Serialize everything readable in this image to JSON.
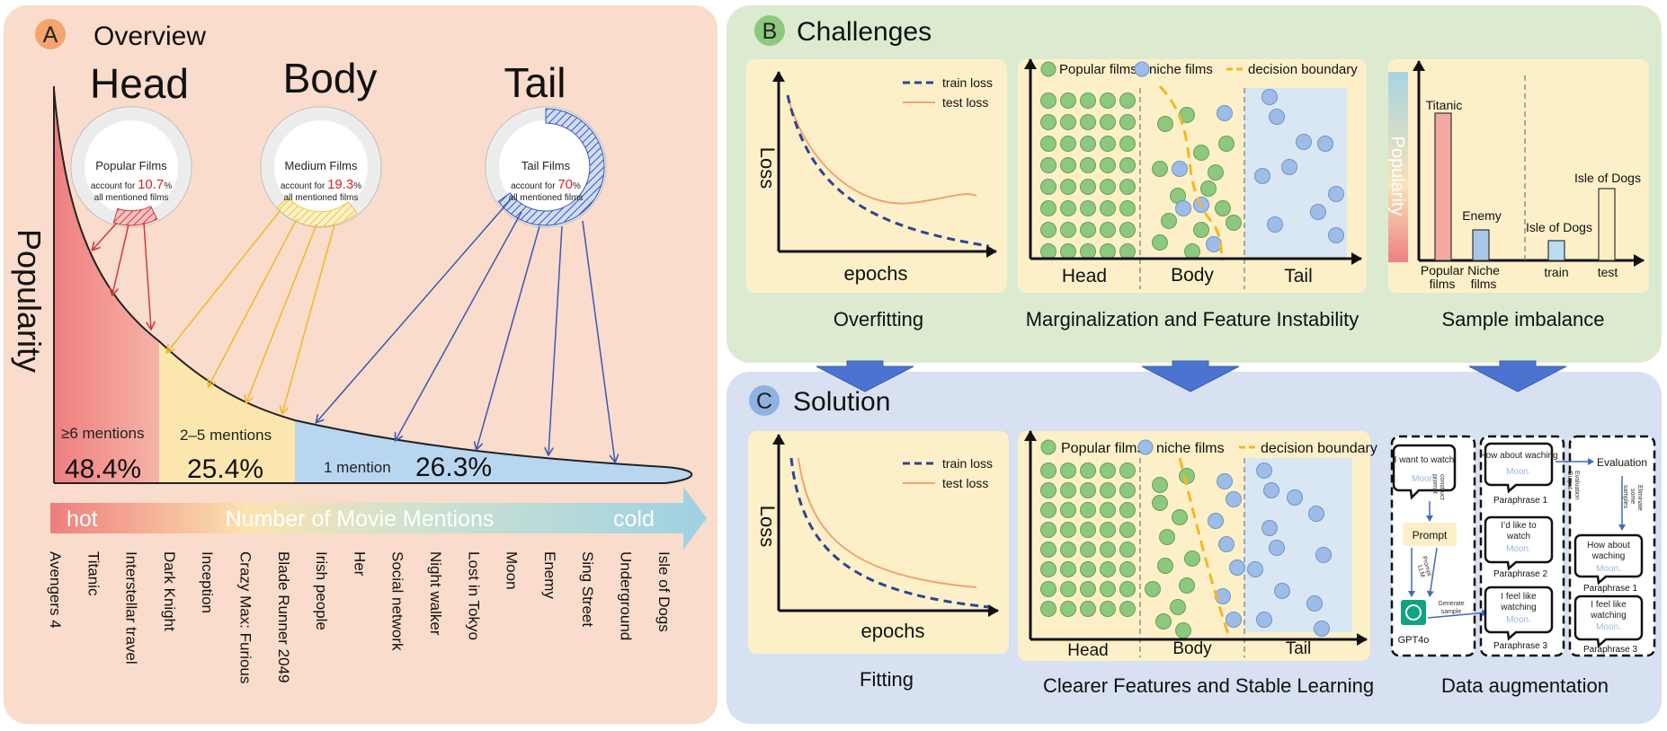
{
  "panelA": {
    "letter": "A",
    "title": "Overview",
    "head_title": "Head",
    "body_title": "Body",
    "tail_title": "Tail",
    "y_label": "Popularity",
    "ring_head": {
      "line1": "Popular Films",
      "pre": "account for ",
      "pct": "10.7",
      "post": "%",
      "line3": "all mentioned films"
    },
    "ring_body": {
      "line1": "Medium  Films",
      "pre": "account for ",
      "pct": "19.3",
      "post": "%",
      "line3": "all mentioned films"
    },
    "ring_tail": {
      "line1": "Tail Films",
      "pre": "account for ",
      "pct": "70",
      "post": "%",
      "line3": "all mentioned films"
    },
    "head_mentions": "≥6 mentions",
    "head_pct": "48.4%",
    "body_mentions": "2–5 mentions",
    "body_pct": "25.4%",
    "tail_mentions": "1 mention",
    "tail_pct": "26.3%",
    "arrow_hot": "hot",
    "arrow_label": "Number of Movie Mentions",
    "arrow_cold": "cold",
    "movies": [
      "Avengers 4",
      "Titanic",
      "Interstellar travel",
      "Dark Knight",
      "Inception",
      "Crazy Max: Furious",
      "Blade Runner 2049",
      "Irish people",
      "Her",
      "Social network",
      "Night walker",
      "Lost in Tokyo",
      "Moon",
      "Enemy",
      "Sing Street",
      "Underground",
      "Isle of Dogs"
    ]
  },
  "panelB": {
    "letter": "B",
    "title": "Challenges",
    "loss": {
      "ylabel": "Loss",
      "xlabel": "epochs",
      "train": "train loss",
      "test": "test loss",
      "caption": "Overfitting"
    },
    "scatter": {
      "legend_popular": "Popular films",
      "legend_niche": "niche films",
      "legend_boundary": "decision boundary",
      "head": "Head",
      "body": "Body",
      "tail": "Tail",
      "caption": "Marginalization and Feature Instability"
    },
    "bars": {
      "ylabel": "Popularity",
      "titanic": "Titanic",
      "enemy": "Enemy",
      "isle1": "Isle of Dogs",
      "isle2": "Isle of Dogs",
      "popular": "Popular",
      "films1": "films",
      "niche": "Niche",
      "films2": "films",
      "train": "train",
      "test": "test",
      "caption": "Sample imbalance"
    }
  },
  "panelC": {
    "letter": "C",
    "title": "Solution",
    "loss": {
      "ylabel": "Loss",
      "xlabel": "epochs",
      "train": "train loss",
      "test": "test loss",
      "caption": "Fitting"
    },
    "scatter": {
      "legend_popular": "Popular films",
      "legend_niche": "niche films",
      "legend_boundary": "decision boundary",
      "head": "Head",
      "body": "Body",
      "tail": "Tail",
      "caption": "Clearer Features and Stable Learning"
    },
    "aug": {
      "bubble1": "I want to watch",
      "moon": "Moon.",
      "construct": "construct",
      "prompt_word": "prompt",
      "prompt_box": "Prompt",
      "gpt": "GPT4o",
      "prompt_llm1": "Prompt",
      "prompt_llm2": "LLM",
      "generate1": "Generate",
      "generate2": "sample",
      "p1_text": "How about waching",
      "p1_label": "Paraphrase 1",
      "p2_text1": "I’d like to",
      "p2_text2": "watch",
      "p2_label": "Paraphrase 2",
      "p3_text1": "I feel like",
      "p3_text2": "watching",
      "p3_label": "Paraphrase 3",
      "evaluation": "Evaluation",
      "eval_output1": "Evaluation",
      "eval_output2": "Output",
      "elim1": "Eliminate",
      "elim2": "some",
      "elim3": "samples",
      "caption": "Data augmentation"
    }
  },
  "colors": {
    "panelA_bg": "#f9dccb",
    "panelB_bg": "#dcebd0",
    "panelC_bg": "#d8e1f1",
    "card_bg": "#fdf0c8",
    "head_fill": "#ef8a86",
    "body_fill": "#fbe7ae",
    "tail_fill": "#b9d6f1",
    "arrow_blue": "#3c58b4",
    "arrow_yellow": "#f7c94d",
    "arrow_red": "#cf3a3a",
    "popular_dot": "#8cc87e",
    "niche_dot": "#9dbde8",
    "boundary": "#f2b823",
    "test_loss": "#f0a275",
    "train_loss": "#2c4595"
  }
}
